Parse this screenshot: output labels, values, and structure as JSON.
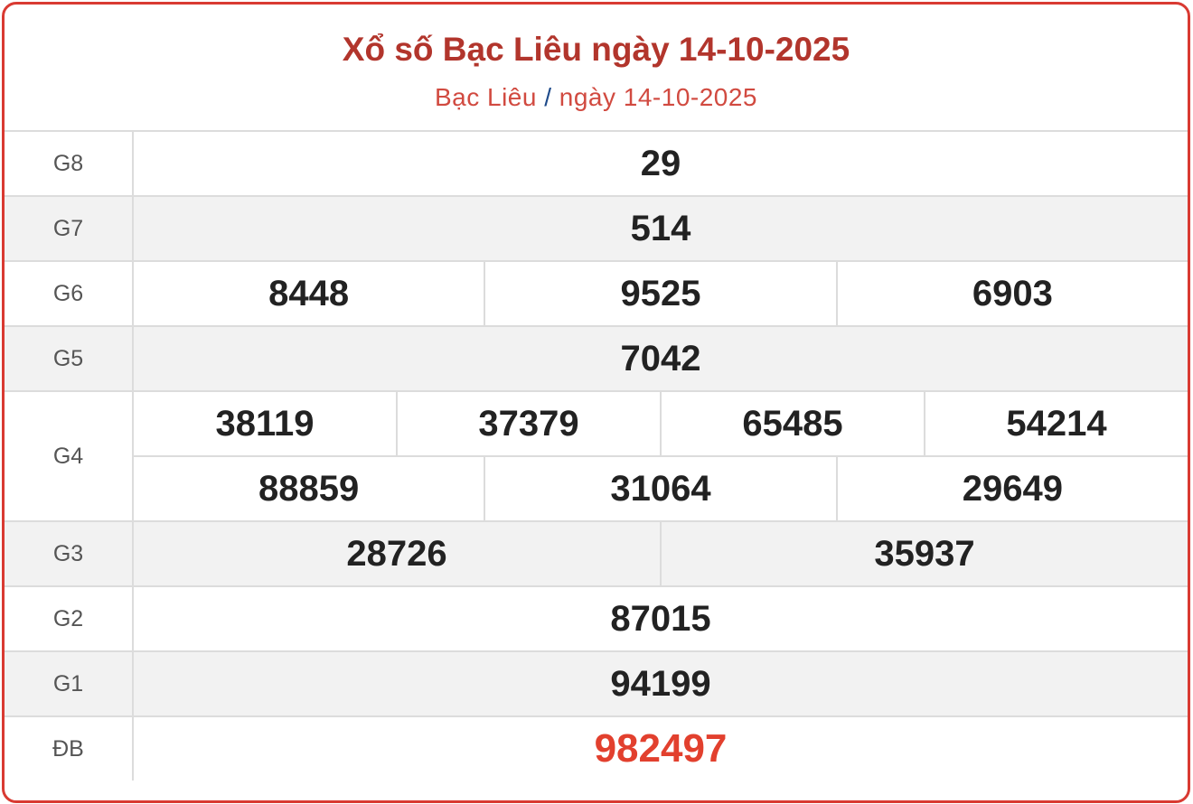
{
  "header": {
    "title": "Xổ số Bạc Liêu ngày 14-10-2025",
    "breadcrumb": {
      "province": "Bạc Liêu",
      "separator": "/",
      "date": "ngày 14-10-2025"
    }
  },
  "colors": {
    "accent": "#b2352c",
    "special": "#e2402e",
    "border": "#d93a32"
  },
  "prizes": [
    {
      "label": "G8",
      "numbers": [
        "29"
      ]
    },
    {
      "label": "G7",
      "numbers": [
        "514"
      ]
    },
    {
      "label": "G6",
      "numbers": [
        "8448",
        "9525",
        "6903"
      ]
    },
    {
      "label": "G5",
      "numbers": [
        "7042"
      ]
    },
    {
      "label": "G4",
      "numbers": [
        "38119",
        "37379",
        "65485",
        "54214",
        "88859",
        "31064",
        "29649"
      ]
    },
    {
      "label": "G3",
      "numbers": [
        "28726",
        "35937"
      ]
    },
    {
      "label": "G2",
      "numbers": [
        "87015"
      ]
    },
    {
      "label": "G1",
      "numbers": [
        "94199"
      ]
    },
    {
      "label": "ĐB",
      "numbers": [
        "982497"
      ]
    }
  ]
}
